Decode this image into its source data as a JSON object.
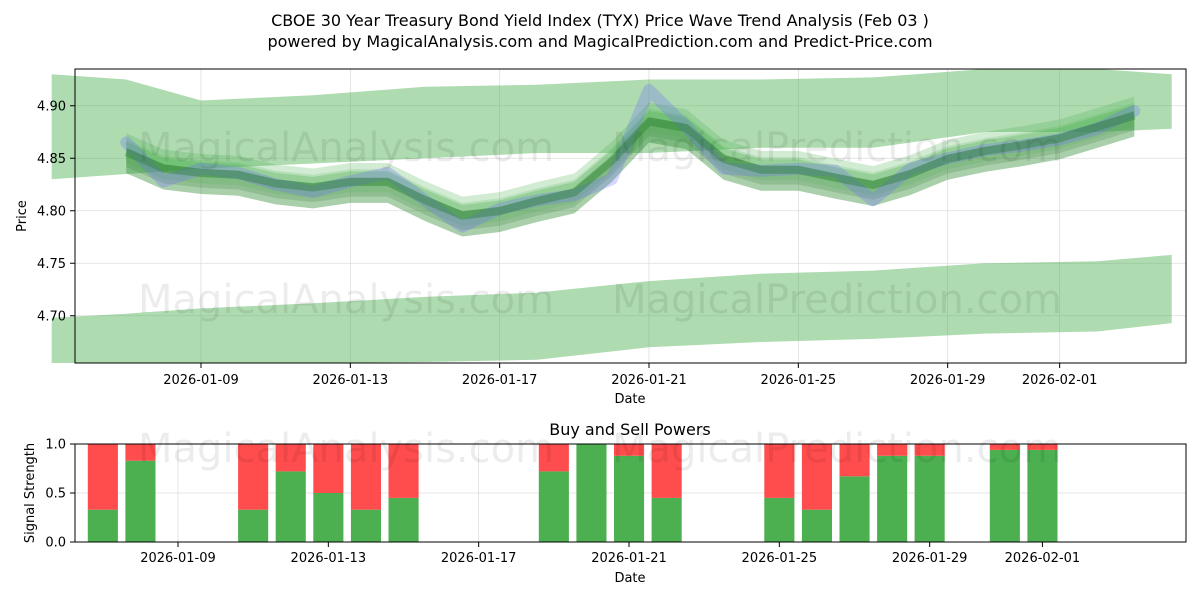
{
  "header": {
    "title": "CBOE 30 Year Treasury Bond Yield Index (TYX) Price Wave Trend Analysis (Feb 03 )",
    "subtitle": "powered by MagicalAnalysis.com and MagicalPrediction.com and Predict-Price.com"
  },
  "watermarks": {
    "left": "MagicalAnalysis.com",
    "right": "MagicalPrediction.com"
  },
  "colors": {
    "band": "#4caf50",
    "band_dark": "#2e7d32",
    "price_line": "#6a6aff",
    "buy": "#4caf50",
    "sell": "#ff4c4c",
    "grid": "#dddddd"
  },
  "chart_data": [
    {
      "type": "area",
      "title": "",
      "xlabel": "Date",
      "ylabel": "Price",
      "ylim": [
        4.655,
        4.935
      ],
      "x_range": [
        "2026-01-05",
        "2026-02-04"
      ],
      "x_ticks": [
        "2026-01-09",
        "2026-01-13",
        "2026-01-17",
        "2026-01-21",
        "2026-01-25",
        "2026-01-29",
        "2026-02-01"
      ],
      "y_ticks": [
        "4.70",
        "4.75",
        "4.80",
        "4.85",
        "4.90"
      ],
      "grid": true,
      "series": [
        {
          "name": "upper wave band",
          "x": [
            "2026-01-05",
            "2026-01-07",
            "2026-01-09",
            "2026-01-12",
            "2026-01-15",
            "2026-01-18",
            "2026-01-21",
            "2026-01-24",
            "2026-01-27",
            "2026-01-30",
            "2026-02-02",
            "2026-02-04"
          ],
          "upper": [
            4.93,
            4.925,
            4.905,
            4.91,
            4.918,
            4.92,
            4.925,
            4.925,
            4.927,
            4.935,
            4.935,
            4.93
          ],
          "lower": [
            4.83,
            4.835,
            4.84,
            4.845,
            4.85,
            4.855,
            4.855,
            4.86,
            4.86,
            4.875,
            4.875,
            4.878
          ]
        },
        {
          "name": "lower wave band",
          "x": [
            "2026-01-05",
            "2026-01-07",
            "2026-01-09",
            "2026-01-12",
            "2026-01-15",
            "2026-01-18",
            "2026-01-21",
            "2026-01-24",
            "2026-01-27",
            "2026-01-30",
            "2026-02-02",
            "2026-02-04"
          ],
          "upper": [
            4.698,
            4.702,
            4.707,
            4.712,
            4.718,
            4.722,
            4.733,
            4.74,
            4.743,
            4.75,
            4.752,
            4.758
          ],
          "lower": [
            4.655,
            4.655,
            4.655,
            4.655,
            4.656,
            4.658,
            4.67,
            4.675,
            4.678,
            4.683,
            4.685,
            4.693
          ]
        },
        {
          "name": "price",
          "x": [
            "2026-01-07",
            "2026-01-08",
            "2026-01-09",
            "2026-01-10",
            "2026-01-11",
            "2026-01-12",
            "2026-01-13",
            "2026-01-14",
            "2026-01-15",
            "2026-01-16",
            "2026-01-17",
            "2026-01-18",
            "2026-01-19",
            "2026-01-20",
            "2026-01-21",
            "2026-01-22",
            "2026-01-23",
            "2026-01-24",
            "2026-01-25",
            "2026-01-26",
            "2026-01-27",
            "2026-01-28",
            "2026-01-29",
            "2026-01-30",
            "2026-01-31",
            "2026-02-01",
            "2026-02-02",
            "2026-02-03"
          ],
          "values": [
            4.865,
            4.828,
            4.84,
            4.836,
            4.825,
            4.818,
            4.828,
            4.836,
            4.81,
            4.785,
            4.802,
            4.81,
            4.815,
            4.83,
            4.915,
            4.88,
            4.84,
            4.838,
            4.84,
            4.838,
            4.81,
            4.84,
            4.85,
            4.858,
            4.862,
            4.868,
            4.878,
            4.895
          ]
        }
      ]
    },
    {
      "type": "bar",
      "title": "Buy and Sell Powers",
      "xlabel": "Date",
      "ylabel": "Signal Strength",
      "ylim": [
        0,
        1.0
      ],
      "x_ticks": [
        "2026-01-09",
        "2026-01-13",
        "2026-01-17",
        "2026-01-21",
        "2026-01-25",
        "2026-01-29",
        "2026-02-01"
      ],
      "y_ticks": [
        "0.0",
        "0.5",
        "1.0"
      ],
      "categories": [
        "2026-01-07",
        "2026-01-08",
        "2026-01-11",
        "2026-01-12",
        "2026-01-13",
        "2026-01-14",
        "2026-01-15",
        "2026-01-19",
        "2026-01-20",
        "2026-01-21",
        "2026-01-22",
        "2026-01-25",
        "2026-01-26",
        "2026-01-27",
        "2026-01-28",
        "2026-01-29",
        "2026-01-31",
        "2026-02-01"
      ],
      "series": [
        {
          "name": "Buy",
          "values": [
            0.33,
            0.83,
            0.33,
            0.72,
            0.5,
            0.33,
            0.45,
            0.72,
            1.0,
            0.88,
            0.45,
            0.45,
            0.33,
            0.67,
            0.88,
            0.88,
            0.94,
            0.94
          ]
        },
        {
          "name": "Sell",
          "values": [
            0.67,
            0.17,
            0.67,
            0.28,
            0.5,
            0.67,
            0.55,
            0.28,
            0.0,
            0.12,
            0.55,
            0.55,
            0.67,
            0.33,
            0.12,
            0.12,
            0.06,
            0.06
          ]
        }
      ]
    }
  ]
}
